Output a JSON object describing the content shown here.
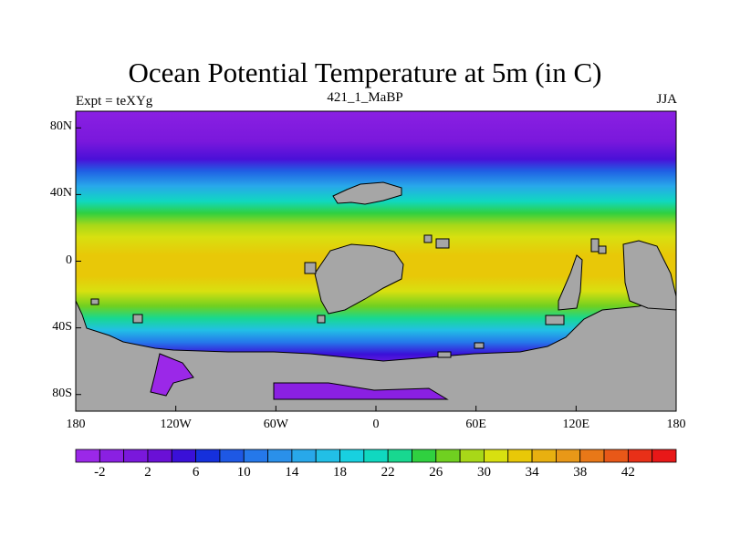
{
  "title": "Ocean Potential Temperature at 5m (in C)",
  "subtitle_left": "Expt = teXYg",
  "subtitle_center": "421_1_MaBP",
  "subtitle_right": "JJA",
  "map": {
    "y_ticks": [
      "80N",
      "40N",
      "0",
      "40S",
      "80S"
    ],
    "y_tick_lats": [
      80,
      40,
      0,
      -40,
      -80
    ],
    "x_ticks": [
      "180",
      "120W",
      "60W",
      "0",
      "60E",
      "120E",
      "180"
    ],
    "x_tick_lons": [
      -180,
      -120,
      -60,
      0,
      60,
      120,
      180
    ],
    "lat_range": [
      -90,
      90
    ],
    "lon_range": [
      -180,
      180
    ],
    "land_color": "#a6a6a6"
  },
  "colorbar": {
    "colors": [
      "#9b28e8",
      "#8a20e2",
      "#7a18dc",
      "#6a10d6",
      "#3a10d8",
      "#1530dc",
      "#1e58e4",
      "#2578ea",
      "#2a90ea",
      "#28a8ea",
      "#22bfe6",
      "#18d0e0",
      "#10d8c0",
      "#18d890",
      "#30d040",
      "#70d020",
      "#a8d818",
      "#d8e010",
      "#e8c808",
      "#e8b010",
      "#e89818",
      "#e87818",
      "#e85818",
      "#e83018",
      "#e81818"
    ],
    "tick_labels": [
      "-2",
      "2",
      "6",
      "10",
      "14",
      "18",
      "22",
      "26",
      "30",
      "34",
      "38",
      "42"
    ]
  }
}
